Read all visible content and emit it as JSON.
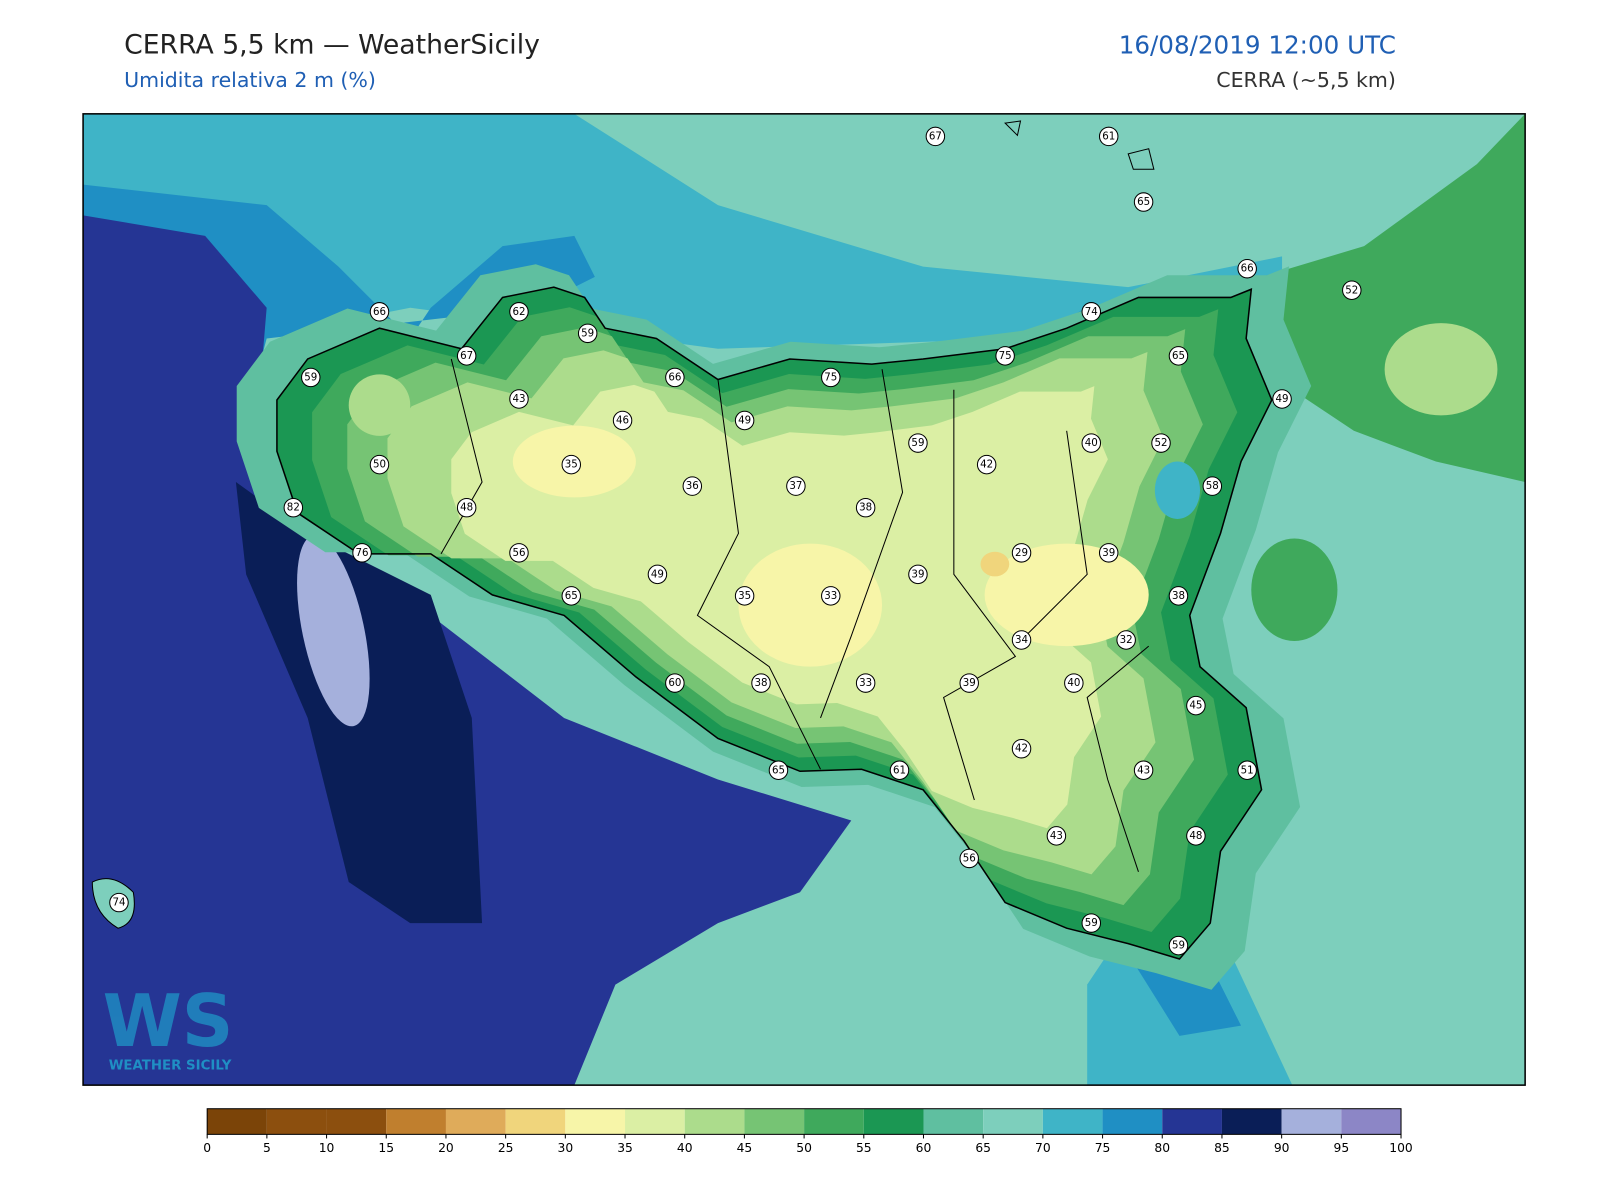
{
  "header": {
    "title": "CERRA 5,5 km — WeatherSicily",
    "subtitle": "Umidita relativa 2 m (%)",
    "date": "16/08/2019 12:00 UTC",
    "source": "CERRA (~5,5 km)"
  },
  "logo": {
    "mark": "WS",
    "text": "WEATHER SICILY"
  },
  "stations": [
    67,
    61,
    65,
    66,
    52,
    66,
    62,
    59,
    74,
    67,
    59,
    66,
    75,
    75,
    65,
    49,
    43,
    46,
    49,
    59,
    40,
    52,
    50,
    35,
    36,
    37,
    42,
    58,
    82,
    48,
    38,
    76,
    56,
    29,
    39,
    49,
    39,
    65,
    35,
    33,
    38,
    34,
    32,
    60,
    38,
    33,
    39,
    40,
    45,
    42,
    61,
    65,
    43,
    51,
    43,
    48,
    56,
    74,
    59,
    59
  ],
  "colorbar": {
    "ticks": [
      0,
      5,
      10,
      15,
      20,
      25,
      30,
      35,
      40,
      45,
      50,
      55,
      60,
      65,
      70,
      75,
      80,
      85,
      90,
      95,
      100
    ],
    "colors": [
      "#7b4408",
      "#8c4f0e",
      "#8c4f0e",
      "#c07f2e",
      "#dfab5a",
      "#f0d57c",
      "#f7f5a8",
      "#dbefa4",
      "#acdc8c",
      "#76c474",
      "#3fa95c",
      "#1b9753",
      "#5fbfa0",
      "#7dcfbc",
      "#3fb4c7",
      "#1f8fc4",
      "#253594",
      "#0a1e57",
      "#a5b0dc",
      "#8c86c6"
    ]
  }
}
